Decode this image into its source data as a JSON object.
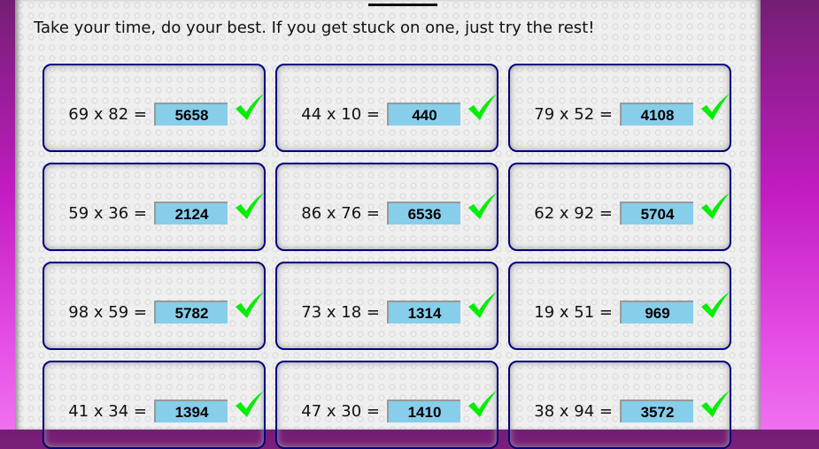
{
  "instructions": "Take your time, do your best. If you get stuck on one, just try the rest!",
  "colors": {
    "card_border": "#000080",
    "answer_bg": "#87ceeb",
    "check": "#00ee00"
  },
  "problems": [
    {
      "question": "69 x 82 =",
      "answer": "5658",
      "status": "correct",
      "icon": "check-icon"
    },
    {
      "question": "44 x 10 =",
      "answer": "440",
      "status": "correct",
      "icon": "check-icon"
    },
    {
      "question": "79 x 52 =",
      "answer": "4108",
      "status": "correct",
      "icon": "check-icon"
    },
    {
      "question": "59 x 36 =",
      "answer": "2124",
      "status": "correct",
      "icon": "check-icon"
    },
    {
      "question": "86 x 76 =",
      "answer": "6536",
      "status": "correct",
      "icon": "check-icon"
    },
    {
      "question": "62 x 92 =",
      "answer": "5704",
      "status": "correct",
      "icon": "check-icon"
    },
    {
      "question": "98 x 59 =",
      "answer": "5782",
      "status": "correct",
      "icon": "check-icon"
    },
    {
      "question": "73 x 18 =",
      "answer": "1314",
      "status": "correct",
      "icon": "check-icon"
    },
    {
      "question": "19 x 51 =",
      "answer": "969",
      "status": "correct",
      "icon": "check-icon"
    },
    {
      "question": "41 x 34 =",
      "answer": "1394",
      "status": "correct",
      "icon": "check-icon"
    },
    {
      "question": "47 x 30 =",
      "answer": "1410",
      "status": "correct",
      "icon": "check-icon"
    },
    {
      "question": "38 x 94 =",
      "answer": "3572",
      "status": "correct",
      "icon": "check-icon"
    }
  ]
}
